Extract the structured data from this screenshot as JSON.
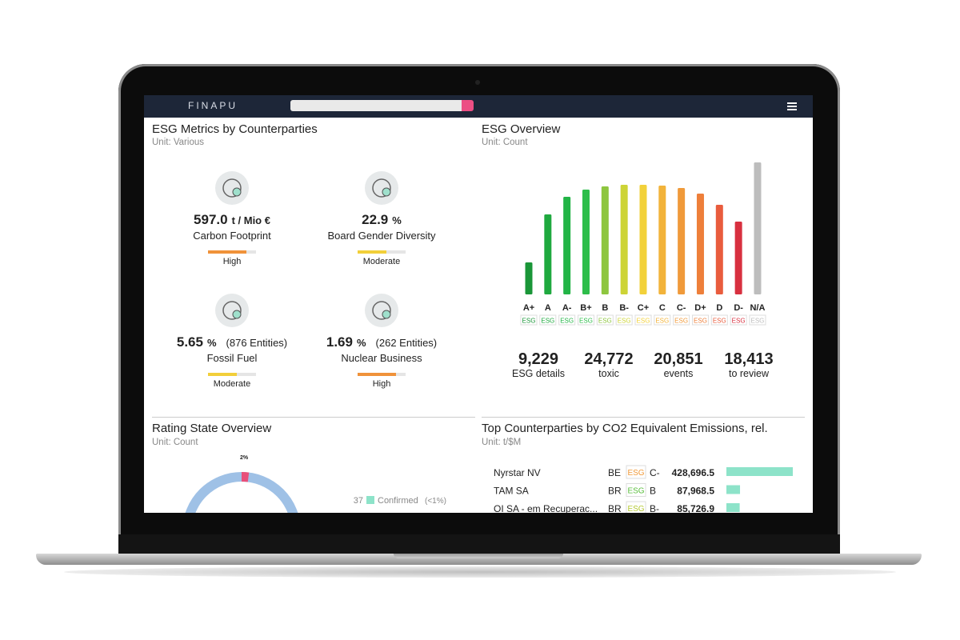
{
  "header": {
    "logo": "FINAPU"
  },
  "badge_text": "ESG",
  "esg_metrics": {
    "title": "ESG Metrics by Counterparties",
    "unit": "Unit: Various",
    "items": [
      {
        "value": "597.0",
        "unit": "t / Mio €",
        "label": "Carbon Footprint",
        "level": "High",
        "color": "#f0923a"
      },
      {
        "value": "22.9",
        "unit": "%",
        "label": "Board Gender Diversity",
        "level": "Moderate",
        "color": "#f2cf3a"
      },
      {
        "value": "5.65",
        "unit": "%",
        "extra": "(876 Entities)",
        "label": "Fossil Fuel",
        "level": "Moderate",
        "color": "#f2cf3a"
      },
      {
        "value": "1.69",
        "unit": "%",
        "extra": "(262 Entities)",
        "label": "Nuclear Business",
        "level": "High",
        "color": "#f0923a"
      }
    ]
  },
  "esg_overview": {
    "title": "ESG Overview",
    "unit": "Unit: Count",
    "chart_data": {
      "type": "bar",
      "categories": [
        "A+",
        "A",
        "A-",
        "B+",
        "B",
        "B-",
        "C+",
        "C",
        "C-",
        "D+",
        "D",
        "D-",
        "N/A"
      ],
      "values": [
        40,
        100,
        122,
        131,
        135,
        137,
        137,
        136,
        133,
        126,
        112,
        91,
        165
      ],
      "colors": [
        "#1a9638",
        "#1fa93f",
        "#22b446",
        "#2dbd4a",
        "#8ec63f",
        "#cdd436",
        "#f2d13a",
        "#f2b33a",
        "#f09a3a",
        "#ee7f3a",
        "#e95c3d",
        "#d8303f",
        "#bdbdbd"
      ]
    },
    "stats": [
      {
        "value": "9,229",
        "label": "ESG details"
      },
      {
        "value": "24,772",
        "label": "toxic"
      },
      {
        "value": "20,851",
        "label": "events"
      },
      {
        "value": "18,413",
        "label": "to review"
      }
    ]
  },
  "rating_state": {
    "title": "Rating State Overview",
    "unit": "Unit: Count",
    "donut": {
      "values": [
        2
      ],
      "value_labels": [
        "2%"
      ],
      "color": "#e8507a",
      "rest_color": "#9fc1e6"
    },
    "legend": [
      {
        "count": "37",
        "label": "Confirmed",
        "share": "(<1%)",
        "color": "#8de3c9"
      }
    ]
  },
  "top_counterparties": {
    "title": "Top Counterparties by CO2 Equivalent Emissions, rel.",
    "unit": "Unit: t/$M",
    "bar_color": "#8de3c9",
    "rows": [
      {
        "name": "Nyrstar NV",
        "country": "BE",
        "rating": "C-",
        "color": "#f09a3a",
        "value": 428696.5,
        "value_label": "428,696.5"
      },
      {
        "name": "TAM SA",
        "country": "BR",
        "rating": "B",
        "color": "#5cbf3f",
        "value": 87968.5,
        "value_label": "87,968.5"
      },
      {
        "name": "OI SA - em Recuperac...",
        "country": "BR",
        "rating": "B-",
        "color": "#b5c934",
        "value": 85726.9,
        "value_label": "85,726.9"
      }
    ]
  }
}
